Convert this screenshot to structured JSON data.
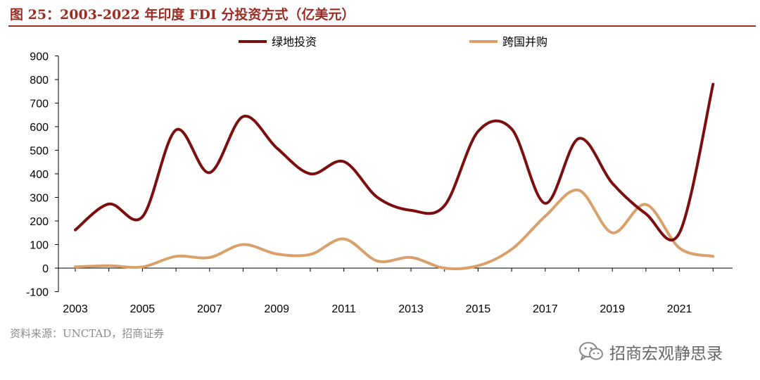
{
  "header": {
    "title": "图 25：2003-2022 年印度 FDI 分投资方式（亿美元）"
  },
  "footer": {
    "source": "资料来源：UNCTAD，招商证券",
    "brand": "招商宏观静思录",
    "brand_icon": "wechat-icon"
  },
  "colors": {
    "accent": "#9b2c23",
    "greenfield": "#7b0f0f",
    "ma": "#d9a06b"
  },
  "chart_data": {
    "type": "line",
    "smooth": true,
    "title": "",
    "xlabel": "",
    "ylabel": "",
    "x": [
      2003,
      2004,
      2005,
      2006,
      2007,
      2008,
      2009,
      2010,
      2011,
      2012,
      2013,
      2014,
      2015,
      2016,
      2017,
      2018,
      2019,
      2020,
      2021,
      2022
    ],
    "x_tick_labels": [
      "2003",
      "2005",
      "2007",
      "2009",
      "2011",
      "2013",
      "2015",
      "2017",
      "2019",
      "2021"
    ],
    "ylim": [
      -100,
      900
    ],
    "y_ticks": [
      -100,
      0,
      100,
      200,
      300,
      400,
      500,
      600,
      700,
      800,
      900
    ],
    "legend_position": "top-center",
    "series": [
      {
        "name": "绿地投资",
        "color": "#7b0f0f",
        "values": [
          162,
          272,
          218,
          586,
          405,
          643,
          510,
          400,
          452,
          300,
          245,
          265,
          580,
          590,
          275,
          550,
          360,
          230,
          150,
          780
        ]
      },
      {
        "name": "跨国并购",
        "color": "#d9a06b",
        "values": [
          5,
          10,
          5,
          50,
          45,
          100,
          60,
          58,
          124,
          30,
          45,
          0,
          10,
          80,
          220,
          330,
          150,
          270,
          85,
          50
        ]
      }
    ]
  }
}
